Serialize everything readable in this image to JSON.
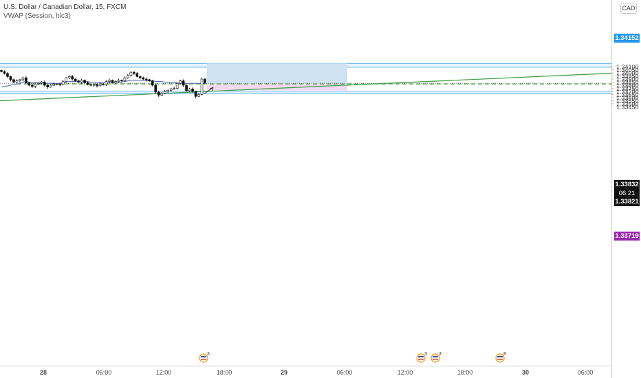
{
  "legend": {
    "title": "U.S. Dollar / Canadian Dollar, 15, FXCM",
    "indicator": "VWAP (Session, hlc3)"
  },
  "currency_button": "CAD",
  "price_tags": {
    "zone_top": "1.34152",
    "last_price": "1.33832",
    "countdown": "06:21",
    "dashed_level": "1.33821",
    "stop": "1.33719"
  },
  "colors": {
    "candle": "#111111",
    "vwap": "#5b6fb8",
    "trendline": "#43a047",
    "dashed_level": "#43a047",
    "zone_fill": "#e3f2fd",
    "zone_line": "#64b5f6",
    "target_fill": "#cfe2f3",
    "stop_fill": "#f3d9f0",
    "blue_tag": "#2196f3",
    "purple_tag": "#9c27b0"
  },
  "event_markers": [
    "3",
    "3",
    "3",
    "8"
  ],
  "chart_data": {
    "type": "candlestick",
    "symbol": "U.S. Dollar / Canadian Dollar",
    "timeframe": "15",
    "source": "FXCM",
    "y_ticks": [
      "1.34100",
      "1.34050",
      "1.34000",
      "1.33950",
      "1.33900",
      "1.33850",
      "1.33800",
      "1.33750",
      "1.33700",
      "1.33650",
      "1.33600",
      "1.33550",
      "1.33500",
      "1.33450"
    ],
    "ylim": [
      1.3343,
      1.3428
    ],
    "x_ticks": [
      "28",
      "06:00",
      "12:00",
      "18:00",
      "29",
      "06:00",
      "12:00",
      "18:00",
      "30",
      "06:00"
    ],
    "closes": [
      1.3402,
      1.3399,
      1.3394,
      1.3389,
      1.3385,
      1.3387,
      1.3389,
      1.3392,
      1.3384,
      1.338,
      1.3378,
      1.3382,
      1.3383,
      1.3385,
      1.338,
      1.3377,
      1.338,
      1.3382,
      1.3382,
      1.3381,
      1.3386,
      1.3392,
      1.3394,
      1.339,
      1.3387,
      1.3385,
      1.3388,
      1.3384,
      1.3381,
      1.338,
      1.3381,
      1.3379,
      1.3382,
      1.3381,
      1.3386,
      1.3388,
      1.3384,
      1.3386,
      1.3388,
      1.3387,
      1.3392,
      1.3396,
      1.3401,
      1.3399,
      1.3394,
      1.3392,
      1.339,
      1.3389,
      1.3387,
      1.338,
      1.3369,
      1.3364,
      1.3367,
      1.337,
      1.3372,
      1.3374,
      1.3375,
      1.3383,
      1.3387,
      1.338,
      1.3371,
      1.3374,
      1.337,
      1.3362,
      1.3365,
      1.339,
      1.3384
    ],
    "vwap": [
      1.3377,
      1.3378,
      1.3379,
      1.338,
      1.3381,
      1.3382,
      1.3383,
      1.3385,
      1.3386,
      1.3385,
      1.3384,
      1.3384,
      1.3384,
      1.3385,
      1.3384,
      1.3383,
      1.3383,
      1.3383,
      1.3383,
      1.3383,
      1.3384,
      1.3385,
      1.3386,
      1.3386,
      1.3386,
      1.3386,
      1.3386,
      1.3386,
      1.3386,
      1.3385,
      1.3385,
      1.3385,
      1.3385,
      1.3385,
      1.3385,
      1.3385,
      1.3385,
      1.3385,
      1.3385,
      1.3385,
      1.3386,
      1.3387,
      1.3388,
      1.3388,
      1.3388,
      1.3388,
      1.3388,
      1.3388,
      1.3387,
      1.3387,
      1.3386,
      1.3386,
      1.3386,
      1.3385,
      1.3385,
      1.3384,
      1.3384,
      1.3384,
      1.3384,
      1.3383,
      1.3383,
      1.3383,
      1.3383,
      1.3383,
      1.3383,
      1.3383,
      1.3383
    ],
    "supply_zone": [
      1.34152,
      1.3409
    ],
    "demand_zone": [
      1.33705,
      1.33665
    ],
    "long_position": {
      "entry": 1.33832,
      "target": 1.34152,
      "stop": 1.33719
    },
    "dashed_level": 1.33821,
    "trendline": {
      "from_price": 1.33549,
      "to_price": 1.33994
    },
    "arrow": {
      "from_price": 1.33661,
      "to_price": 1.33765
    }
  }
}
